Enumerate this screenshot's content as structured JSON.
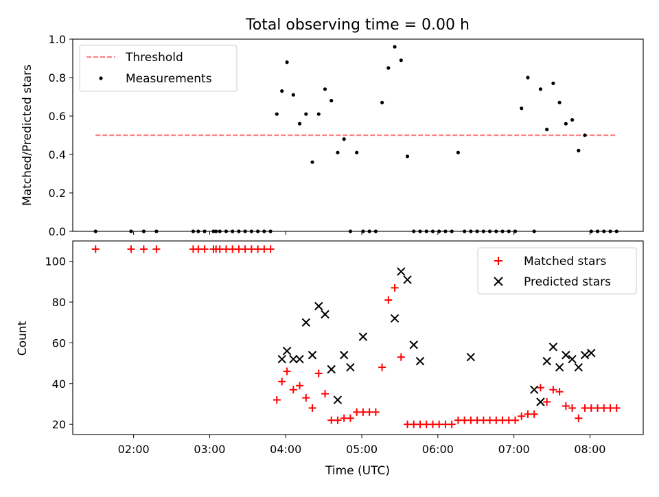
{
  "chart_data": [
    {
      "type": "scatter",
      "title": "Total observing time = 0.00 h",
      "xlabel": "",
      "ylabel": "Matched/Predicted stars",
      "xlim": [
        "01:12",
        "08:42"
      ],
      "ylim": [
        0,
        1.0
      ],
      "y_ticks": [
        "0.0",
        "0.2",
        "0.4",
        "0.6",
        "0.8",
        "1.0"
      ],
      "grid": false,
      "legend": "top-left",
      "colors": {
        "threshold": "#ff7f7f",
        "measurements": "#000000"
      },
      "threshold": {
        "name": "Threshold",
        "value": 0.5,
        "x": [
          "01:30",
          "08:20"
        ]
      },
      "series": [
        {
          "name": "Measurements",
          "x": [
            "01:30",
            "01:58",
            "02:08",
            "02:18",
            "02:47",
            "02:51",
            "02:56",
            "03:03",
            "03:05",
            "03:08",
            "03:13",
            "03:18",
            "03:23",
            "03:28",
            "03:33",
            "03:38",
            "03:43",
            "03:48",
            "03:53",
            "03:57",
            "04:01",
            "04:06",
            "04:11",
            "04:16",
            "04:21",
            "04:26",
            "04:31",
            "04:36",
            "04:41",
            "04:46",
            "04:51",
            "04:56",
            "05:01",
            "05:06",
            "05:11",
            "05:16",
            "05:21",
            "05:26",
            "05:31",
            "05:36",
            "05:41",
            "05:46",
            "05:51",
            "05:56",
            "06:01",
            "06:06",
            "06:11",
            "06:16",
            "06:21",
            "06:26",
            "06:31",
            "06:36",
            "06:41",
            "06:46",
            "06:51",
            "06:56",
            "07:01",
            "07:06",
            "07:11",
            "07:16",
            "07:21",
            "07:26",
            "07:31",
            "07:36",
            "07:41",
            "07:46",
            "07:51",
            "07:56",
            "08:01",
            "08:06",
            "08:11",
            "08:16",
            "08:21"
          ],
          "y": [
            0,
            0,
            0,
            0,
            0,
            0,
            0,
            0,
            0,
            0,
            0,
            0,
            0,
            0,
            0,
            0,
            0,
            0,
            0.61,
            0.73,
            0.88,
            0.71,
            0.56,
            0.61,
            0.36,
            0.61,
            0.74,
            0.68,
            0.41,
            0.48,
            0,
            0.41,
            0,
            0,
            0,
            0.67,
            0.85,
            0.96,
            0.89,
            0.39,
            0,
            0,
            0,
            0,
            0,
            0,
            0,
            0.41,
            0,
            0,
            0,
            0,
            0,
            0,
            0,
            0,
            0,
            0.64,
            0.8,
            0,
            0.74,
            0.53,
            0.77,
            0.67,
            0.56,
            0.58,
            0.42,
            0.5,
            0,
            0,
            0,
            0,
            0
          ]
        }
      ]
    },
    {
      "type": "scatter",
      "title": "",
      "xlabel": "Time (UTC)",
      "ylabel": "Count",
      "xlim": [
        "01:12",
        "08:42"
      ],
      "ylim": [
        15,
        110
      ],
      "x_ticks": [
        "02:00",
        "03:00",
        "04:00",
        "05:00",
        "06:00",
        "07:00",
        "08:00"
      ],
      "y_ticks": [
        "20",
        "40",
        "60",
        "80",
        "100"
      ],
      "grid": false,
      "legend": "top-right",
      "colors": {
        "matched": "#ff0000",
        "predicted": "#000000"
      },
      "series": [
        {
          "name": "Matched stars",
          "marker": "plus",
          "x": [
            "01:30",
            "01:58",
            "02:08",
            "02:18",
            "02:47",
            "02:51",
            "02:56",
            "03:03",
            "03:05",
            "03:08",
            "03:13",
            "03:18",
            "03:23",
            "03:28",
            "03:33",
            "03:38",
            "03:43",
            "03:48",
            "03:53",
            "03:57",
            "04:01",
            "04:06",
            "04:11",
            "04:16",
            "04:21",
            "04:26",
            "04:31",
            "04:36",
            "04:41",
            "04:46",
            "04:51",
            "04:56",
            "05:01",
            "05:06",
            "05:11",
            "05:16",
            "05:21",
            "05:26",
            "05:31",
            "05:36",
            "05:41",
            "05:46",
            "05:51",
            "05:56",
            "06:01",
            "06:06",
            "06:11",
            "06:16",
            "06:21",
            "06:26",
            "06:31",
            "06:36",
            "06:41",
            "06:46",
            "06:51",
            "06:56",
            "07:01",
            "07:06",
            "07:11",
            "07:16",
            "07:21",
            "07:26",
            "07:31",
            "07:36",
            "07:41",
            "07:46",
            "07:51",
            "07:56",
            "08:01",
            "08:06",
            "08:11",
            "08:16",
            "08:21"
          ],
          "y": [
            106,
            106,
            106,
            106,
            106,
            106,
            106,
            106,
            106,
            106,
            106,
            106,
            106,
            106,
            106,
            106,
            106,
            106,
            32,
            41,
            46,
            37,
            39,
            33,
            28,
            45,
            35,
            22,
            22,
            23,
            23,
            26,
            26,
            26,
            26,
            48,
            81,
            87,
            53,
            20,
            20,
            20,
            20,
            20,
            20,
            20,
            20,
            22,
            22,
            22,
            22,
            22,
            22,
            22,
            22,
            22,
            22,
            24,
            25,
            25,
            38,
            31,
            37,
            36,
            29,
            28,
            23,
            28,
            28,
            28,
            28,
            28,
            28
          ]
        },
        {
          "name": "Predicted stars",
          "marker": "x",
          "x": [
            "03:57",
            "04:01",
            "04:06",
            "04:11",
            "04:16",
            "04:21",
            "04:26",
            "04:31",
            "04:36",
            "04:41",
            "04:46",
            "04:51",
            "05:01",
            "05:26",
            "05:31",
            "05:36",
            "05:41",
            "05:46",
            "06:26",
            "07:16",
            "07:21",
            "07:26",
            "07:31",
            "07:36",
            "07:41",
            "07:46",
            "07:51",
            "07:56",
            "08:01"
          ],
          "y": [
            52,
            56,
            52,
            52,
            70,
            54,
            78,
            74,
            47,
            32,
            54,
            48,
            63,
            72,
            95,
            91,
            59,
            51,
            53,
            37,
            31,
            51,
            58,
            48,
            54,
            52,
            48,
            54,
            55
          ]
        }
      ]
    }
  ]
}
